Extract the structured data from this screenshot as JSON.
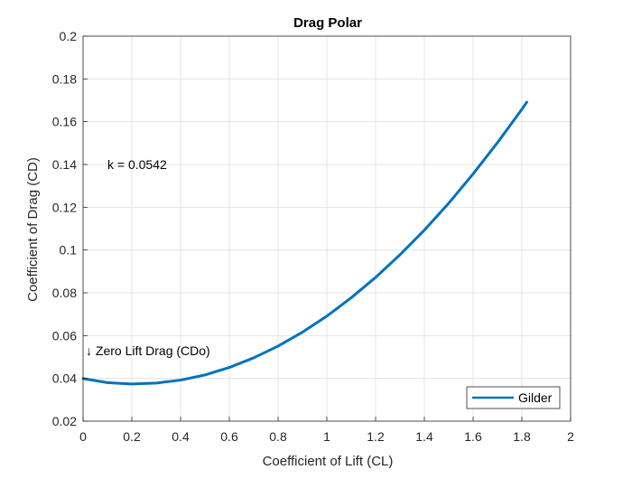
{
  "chart_data": {
    "type": "line",
    "title": "Drag Polar",
    "xlabel": "Coefficient of Lift (CL)",
    "ylabel": "Coefficient of Drag (CD)",
    "xlim": [
      0,
      2
    ],
    "ylim": [
      0.02,
      0.2
    ],
    "xticks": [
      0,
      0.2,
      0.4,
      0.6,
      0.8,
      1,
      1.2,
      1.4,
      1.6,
      1.8,
      2
    ],
    "xtick_labels": [
      "0",
      "0.2",
      "0.4",
      "0.6",
      "0.8",
      "1",
      "1.2",
      "1.4",
      "1.6",
      "1.8",
      "2"
    ],
    "yticks": [
      0.02,
      0.04,
      0.06,
      0.08,
      0.1,
      0.12,
      0.14,
      0.16,
      0.18,
      0.2
    ],
    "ytick_labels": [
      "0.02",
      "0.04",
      "0.06",
      "0.08",
      "0.1",
      "0.12",
      "0.14",
      "0.16",
      "0.18",
      "0.2"
    ],
    "grid": true,
    "legend_position": "bottom-right",
    "series": [
      {
        "name": "Gilder",
        "color": "#0072BD",
        "x": [
          0,
          0.1,
          0.2,
          0.3,
          0.4,
          0.5,
          0.6,
          0.7,
          0.8,
          0.9,
          1.0,
          1.1,
          1.2,
          1.3,
          1.4,
          1.5,
          1.6,
          1.7,
          1.8,
          1.82
        ],
        "y": [
          0.0399,
          0.038,
          0.0374,
          0.0378,
          0.0392,
          0.0416,
          0.0451,
          0.0496,
          0.0551,
          0.0616,
          0.0691,
          0.0777,
          0.0872,
          0.0978,
          0.1093,
          0.1219,
          0.1356,
          0.1502,
          0.1658,
          0.1691
        ]
      }
    ],
    "annotations": [
      {
        "text": "k = 0.0542",
        "x": 0.1,
        "y": 0.14
      },
      {
        "text": "↓  Zero Lift Drag (CDo)",
        "x": 0.0,
        "y": 0.053
      }
    ]
  }
}
